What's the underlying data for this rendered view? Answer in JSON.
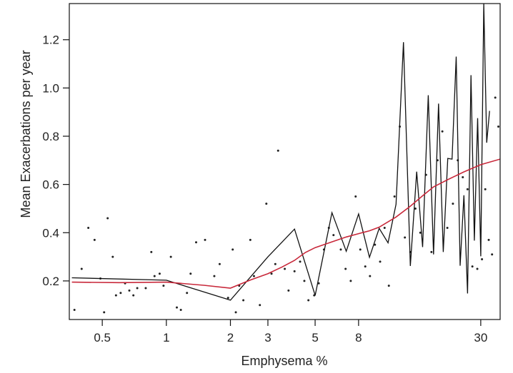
{
  "chart_data": {
    "type": "line",
    "title": "",
    "xlabel": "Emphysema %",
    "ylabel": "Mean Exacerbations per year",
    "x_scale": "log",
    "xlim": [
      0.35,
      37
    ],
    "ylim": [
      0.04,
      1.35
    ],
    "x_ticks": [
      0.5,
      1,
      2,
      3,
      5,
      8,
      30
    ],
    "x_tick_labels": [
      "0.5",
      "1",
      "2",
      "3",
      "5",
      "8",
      "30"
    ],
    "y_ticks": [
      0.2,
      0.4,
      0.6,
      0.8,
      1.0,
      1.2
    ],
    "y_tick_labels": [
      "0.2",
      "0.4",
      "0.6",
      "0.8",
      "1.0",
      "1.2"
    ],
    "grid": false,
    "legend": "none",
    "colors": {
      "points": "#222222",
      "black_line": "#111111",
      "smooth_line": "#c8283a"
    },
    "points": [
      {
        "x": 0.37,
        "y": 0.08
      },
      {
        "x": 0.4,
        "y": 0.25
      },
      {
        "x": 0.43,
        "y": 0.42
      },
      {
        "x": 0.46,
        "y": 0.37
      },
      {
        "x": 0.49,
        "y": 0.21
      },
      {
        "x": 0.51,
        "y": 0.07
      },
      {
        "x": 0.53,
        "y": 0.46
      },
      {
        "x": 0.56,
        "y": 0.3
      },
      {
        "x": 0.58,
        "y": 0.14
      },
      {
        "x": 0.61,
        "y": 0.15
      },
      {
        "x": 0.64,
        "y": 0.19
      },
      {
        "x": 0.67,
        "y": 0.16
      },
      {
        "x": 0.7,
        "y": 0.14
      },
      {
        "x": 0.73,
        "y": 0.17
      },
      {
        "x": 0.8,
        "y": 0.17
      },
      {
        "x": 0.85,
        "y": 0.32
      },
      {
        "x": 0.88,
        "y": 0.22
      },
      {
        "x": 0.93,
        "y": 0.23
      },
      {
        "x": 0.97,
        "y": 0.18
      },
      {
        "x": 1.05,
        "y": 0.3
      },
      {
        "x": 1.12,
        "y": 0.09
      },
      {
        "x": 1.17,
        "y": 0.08
      },
      {
        "x": 1.25,
        "y": 0.15
      },
      {
        "x": 1.3,
        "y": 0.23
      },
      {
        "x": 1.38,
        "y": 0.36
      },
      {
        "x": 1.52,
        "y": 0.37
      },
      {
        "x": 1.68,
        "y": 0.22
      },
      {
        "x": 1.78,
        "y": 0.27
      },
      {
        "x": 1.95,
        "y": 0.13
      },
      {
        "x": 2.05,
        "y": 0.33
      },
      {
        "x": 2.12,
        "y": 0.07
      },
      {
        "x": 2.2,
        "y": 0.18
      },
      {
        "x": 2.3,
        "y": 0.12
      },
      {
        "x": 2.48,
        "y": 0.37
      },
      {
        "x": 2.58,
        "y": 0.22
      },
      {
        "x": 2.75,
        "y": 0.1
      },
      {
        "x": 2.95,
        "y": 0.52
      },
      {
        "x": 3.12,
        "y": 0.23
      },
      {
        "x": 3.25,
        "y": 0.27
      },
      {
        "x": 3.35,
        "y": 0.74
      },
      {
        "x": 3.6,
        "y": 0.25
      },
      {
        "x": 3.75,
        "y": 0.16
      },
      {
        "x": 4.0,
        "y": 0.24
      },
      {
        "x": 4.25,
        "y": 0.28
      },
      {
        "x": 4.45,
        "y": 0.2
      },
      {
        "x": 4.65,
        "y": 0.12
      },
      {
        "x": 4.95,
        "y": 0.14
      },
      {
        "x": 5.2,
        "y": 0.19
      },
      {
        "x": 5.5,
        "y": 0.33
      },
      {
        "x": 5.8,
        "y": 0.42
      },
      {
        "x": 6.1,
        "y": 0.39
      },
      {
        "x": 6.6,
        "y": 0.33
      },
      {
        "x": 6.95,
        "y": 0.25
      },
      {
        "x": 7.35,
        "y": 0.2
      },
      {
        "x": 7.75,
        "y": 0.55
      },
      {
        "x": 8.15,
        "y": 0.33
      },
      {
        "x": 8.6,
        "y": 0.26
      },
      {
        "x": 9.05,
        "y": 0.22
      },
      {
        "x": 9.55,
        "y": 0.35
      },
      {
        "x": 10.1,
        "y": 0.28
      },
      {
        "x": 10.6,
        "y": 0.42
      },
      {
        "x": 11.1,
        "y": 0.18
      },
      {
        "x": 11.8,
        "y": 0.55
      },
      {
        "x": 12.5,
        "y": 0.84
      },
      {
        "x": 13.2,
        "y": 0.38
      },
      {
        "x": 14.0,
        "y": 0.32
      },
      {
        "x": 14.8,
        "y": 0.5
      },
      {
        "x": 15.6,
        "y": 0.4
      },
      {
        "x": 16.6,
        "y": 0.64
      },
      {
        "x": 17.6,
        "y": 0.32
      },
      {
        "x": 18.8,
        "y": 0.7
      },
      {
        "x": 19.8,
        "y": 0.82
      },
      {
        "x": 20.9,
        "y": 0.42
      },
      {
        "x": 22.2,
        "y": 0.52
      },
      {
        "x": 23.4,
        "y": 0.7
      },
      {
        "x": 24.7,
        "y": 0.63
      },
      {
        "x": 26.0,
        "y": 0.58
      },
      {
        "x": 27.4,
        "y": 0.26
      },
      {
        "x": 28.9,
        "y": 0.25
      },
      {
        "x": 30.4,
        "y": 0.29
      },
      {
        "x": 31.5,
        "y": 0.58
      },
      {
        "x": 32.7,
        "y": 0.37
      },
      {
        "x": 33.9,
        "y": 0.31
      },
      {
        "x": 35.1,
        "y": 0.96
      },
      {
        "x": 36.3,
        "y": 0.84
      }
    ],
    "series": [
      {
        "values_xy": [
          [
            0.36,
            0.213
          ],
          [
            1.0,
            0.203
          ],
          [
            2.0,
            0.12
          ],
          [
            3.0,
            0.3
          ],
          [
            4.0,
            0.415
          ],
          [
            5.0,
            0.14
          ],
          [
            6.0,
            0.483
          ],
          [
            7.0,
            0.323
          ],
          [
            8.0,
            0.478
          ],
          [
            9.0,
            0.298
          ],
          [
            10.0,
            0.418
          ],
          [
            11.0,
            0.358
          ],
          [
            12.0,
            0.518
          ],
          [
            13.0,
            1.19
          ],
          [
            14.0,
            0.262
          ],
          [
            15.0,
            0.653
          ],
          [
            16.0,
            0.34
          ],
          [
            17.0,
            0.97
          ],
          [
            18.0,
            0.31
          ],
          [
            19.0,
            0.935
          ],
          [
            20.0,
            0.32
          ],
          [
            21.0,
            0.708
          ],
          [
            22.0,
            0.705
          ],
          [
            23.0,
            1.13
          ],
          [
            24.0,
            0.263
          ],
          [
            25.0,
            0.555
          ],
          [
            26.0,
            0.148
          ],
          [
            27.0,
            1.053
          ],
          [
            28.0,
            0.367
          ],
          [
            29.0,
            0.875
          ],
          [
            30.0,
            0.302
          ],
          [
            31.0,
            1.35
          ],
          [
            32.0,
            0.773
          ],
          [
            33.0,
            0.905
          ]
        ]
      },
      {
        "values_xy": [
          [
            0.36,
            0.195
          ],
          [
            0.6,
            0.193
          ],
          [
            1.0,
            0.195
          ],
          [
            1.5,
            0.182
          ],
          [
            2.0,
            0.17
          ],
          [
            2.5,
            0.205
          ],
          [
            3.0,
            0.23
          ],
          [
            3.5,
            0.258
          ],
          [
            4.0,
            0.285
          ],
          [
            4.5,
            0.318
          ],
          [
            5.0,
            0.338
          ],
          [
            6.0,
            0.362
          ],
          [
            7.0,
            0.382
          ],
          [
            8.0,
            0.396
          ],
          [
            9.0,
            0.408
          ],
          [
            10.0,
            0.423
          ],
          [
            12.0,
            0.465
          ],
          [
            14.0,
            0.51
          ],
          [
            16.0,
            0.553
          ],
          [
            18.0,
            0.59
          ],
          [
            21.0,
            0.62
          ],
          [
            25.0,
            0.652
          ],
          [
            30.0,
            0.682
          ],
          [
            37.0,
            0.705
          ]
        ]
      }
    ]
  }
}
